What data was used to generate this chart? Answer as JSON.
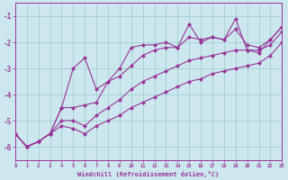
{
  "title": "",
  "xlabel": "Windchill (Refroidissement éolien,°C)",
  "ylabel": "",
  "bg_color": "#cce8ee",
  "grid_color": "#99cccc",
  "line_color": "#993399",
  "xmin": 0,
  "xmax": 23,
  "ymin": -6.5,
  "ymax": -0.5,
  "yticks": [
    -6,
    -5,
    -4,
    -3,
    -2,
    -1
  ],
  "xticks": [
    0,
    1,
    2,
    3,
    4,
    5,
    6,
    7,
    8,
    9,
    10,
    11,
    12,
    13,
    14,
    15,
    16,
    17,
    18,
    19,
    20,
    21,
    22,
    23
  ],
  "series": [
    {
      "x": [
        0,
        1,
        2,
        3,
        4,
        5,
        6,
        7,
        8,
        9,
        10,
        11,
        12,
        13,
        14,
        15,
        16,
        17,
        18,
        19,
        20,
        21,
        22,
        23
      ],
      "y": [
        -5.5,
        -6.0,
        -5.8,
        -5.5,
        -4.5,
        -3.0,
        -2.6,
        -3.8,
        -3.5,
        -3.0,
        -2.2,
        -2.1,
        -2.1,
        -2.0,
        -2.2,
        -1.3,
        -2.0,
        -1.8,
        -1.9,
        -1.1,
        -2.3,
        -2.4,
        -1.9,
        -1.4
      ]
    },
    {
      "x": [
        0,
        1,
        2,
        3,
        4,
        5,
        6,
        7,
        8,
        9,
        10,
        11,
        12,
        13,
        14,
        15,
        16,
        17,
        18,
        19,
        20,
        21,
        22,
        23
      ],
      "y": [
        -5.5,
        -6.0,
        -5.8,
        -5.5,
        -4.5,
        -4.5,
        -4.4,
        -4.3,
        -3.5,
        -3.3,
        -2.9,
        -2.5,
        -2.3,
        -2.2,
        -2.2,
        -1.8,
        -1.9,
        -1.8,
        -1.9,
        -1.5,
        -2.1,
        -2.2,
        -1.9,
        -1.4
      ]
    },
    {
      "x": [
        0,
        1,
        2,
        3,
        4,
        5,
        6,
        7,
        8,
        9,
        10,
        11,
        12,
        13,
        14,
        15,
        16,
        17,
        18,
        19,
        20,
        21,
        22,
        23
      ],
      "y": [
        -5.5,
        -6.0,
        -5.8,
        -5.5,
        -5.0,
        -5.0,
        -5.2,
        -4.8,
        -4.5,
        -4.2,
        -3.8,
        -3.5,
        -3.3,
        -3.1,
        -2.9,
        -2.7,
        -2.6,
        -2.5,
        -2.4,
        -2.3,
        -2.3,
        -2.3,
        -2.1,
        -1.6
      ]
    },
    {
      "x": [
        0,
        1,
        2,
        3,
        4,
        5,
        6,
        7,
        8,
        9,
        10,
        11,
        12,
        13,
        14,
        15,
        16,
        17,
        18,
        19,
        20,
        21,
        22,
        23
      ],
      "y": [
        -5.5,
        -6.0,
        -5.8,
        -5.5,
        -5.2,
        -5.3,
        -5.5,
        -5.2,
        -5.0,
        -4.8,
        -4.5,
        -4.3,
        -4.1,
        -3.9,
        -3.7,
        -3.5,
        -3.4,
        -3.2,
        -3.1,
        -3.0,
        -2.9,
        -2.8,
        -2.5,
        -2.0
      ]
    }
  ]
}
